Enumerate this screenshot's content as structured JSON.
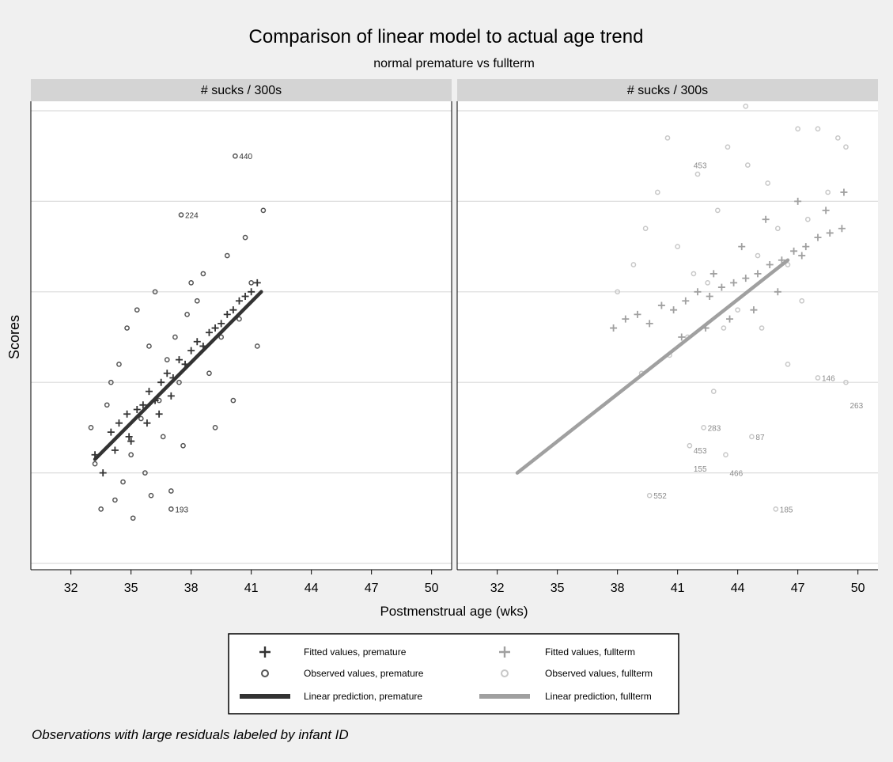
{
  "title": "Comparison of linear model to actual age trend",
  "subtitle": "normal premature vs fullterm",
  "ylabel": "Scores",
  "xlabel": "Postmenstrual age (wks)",
  "note": "Observations with large residuals labeled by infant ID",
  "colors": {
    "background": "#f0f0f0",
    "plot_bg": "#ffffff",
    "strip": "#d4d4d4",
    "grid": "#dcdcdc",
    "premature_fit": "#333333",
    "premature_obs": "#555555",
    "fullterm_fit": "#a0a0a0",
    "fullterm_obs": "#c8c8c8"
  },
  "chart_data": [
    {
      "type": "scatter",
      "panel_title": "# sucks / 300s",
      "x_ticks": [
        "32",
        "35",
        "38",
        "41",
        "44",
        "47",
        "50"
      ],
      "x_range": [
        30,
        51
      ],
      "y_range": [
        0,
        100
      ],
      "grid": true,
      "series": [
        {
          "name": "Fitted values, premature",
          "marker": "plus",
          "color": "#333333",
          "points": [
            [
              33.2,
              24
            ],
            [
              33.6,
              20
            ],
            [
              34,
              29
            ],
            [
              34.4,
              31
            ],
            [
              34.8,
              33
            ],
            [
              35,
              27
            ],
            [
              35.3,
              34
            ],
            [
              35.6,
              35
            ],
            [
              35.9,
              38
            ],
            [
              36.2,
              36
            ],
            [
              36.5,
              40
            ],
            [
              36.8,
              42
            ],
            [
              37.1,
              41
            ],
            [
              37.4,
              45
            ],
            [
              37.7,
              44
            ],
            [
              38,
              47
            ],
            [
              38.3,
              49
            ],
            [
              38.6,
              48
            ],
            [
              38.9,
              51
            ],
            [
              39.2,
              52
            ],
            [
              39.5,
              53
            ],
            [
              39.8,
              55
            ],
            [
              40.1,
              56
            ],
            [
              40.4,
              58
            ],
            [
              40.7,
              59
            ],
            [
              41,
              60
            ],
            [
              41.3,
              62
            ],
            [
              34.2,
              25
            ],
            [
              34.9,
              28
            ],
            [
              35.8,
              31
            ],
            [
              36.4,
              33
            ],
            [
              37,
              37
            ]
          ]
        },
        {
          "name": "Observed values, premature",
          "marker": "circle",
          "color": "#555555",
          "points": [
            [
              33,
              30
            ],
            [
              33.2,
              22
            ],
            [
              33.5,
              12
            ],
            [
              33.8,
              35
            ],
            [
              34,
              40
            ],
            [
              34.2,
              14
            ],
            [
              34.4,
              44
            ],
            [
              34.6,
              18
            ],
            [
              34.8,
              52
            ],
            [
              35,
              24
            ],
            [
              35.1,
              10
            ],
            [
              35.3,
              56
            ],
            [
              35.5,
              32
            ],
            [
              35.7,
              20
            ],
            [
              35.9,
              48
            ],
            [
              36,
              15
            ],
            [
              36.2,
              60
            ],
            [
              36.4,
              36
            ],
            [
              36.6,
              28
            ],
            [
              36.8,
              45
            ],
            [
              37,
              16
            ],
            [
              37.2,
              50
            ],
            [
              37.4,
              40
            ],
            [
              37.6,
              26
            ],
            [
              37.8,
              55
            ],
            [
              38,
              62
            ],
            [
              38.3,
              58
            ],
            [
              38.6,
              64
            ],
            [
              38.9,
              42
            ],
            [
              39.2,
              30
            ],
            [
              39.5,
              50
            ],
            [
              39.8,
              68
            ],
            [
              40.1,
              36
            ],
            [
              40.4,
              54
            ],
            [
              40.7,
              72
            ],
            [
              41,
              62
            ],
            [
              41.3,
              48
            ],
            [
              41.6,
              78
            ],
            [
              37.5,
              77
            ],
            [
              40.2,
              90
            ],
            [
              37,
              12
            ]
          ]
        },
        {
          "name": "Linear prediction, premature",
          "marker": "line",
          "color": "#333333",
          "line": [
            [
              33.2,
              23
            ],
            [
              41.5,
              60
            ]
          ]
        }
      ],
      "labels": [
        {
          "text": "440",
          "x": 40.2,
          "y": 90,
          "series": "premature"
        },
        {
          "text": "224",
          "x": 37.5,
          "y": 77,
          "series": "premature"
        },
        {
          "text": "193",
          "x": 37,
          "y": 12,
          "series": "premature"
        }
      ]
    },
    {
      "type": "scatter",
      "panel_title": "# sucks / 300s",
      "x_ticks": [
        "32",
        "35",
        "38",
        "41",
        "44",
        "47",
        "50"
      ],
      "x_range": [
        30,
        51
      ],
      "y_range": [
        0,
        100
      ],
      "grid": true,
      "series": [
        {
          "name": "Fitted values, fullterm",
          "marker": "plus",
          "color": "#a0a0a0",
          "points": [
            [
              37.8,
              52
            ],
            [
              38.4,
              54
            ],
            [
              39,
              55
            ],
            [
              39.6,
              53
            ],
            [
              40.2,
              57
            ],
            [
              40.8,
              56
            ],
            [
              41.4,
              58
            ],
            [
              42,
              60
            ],
            [
              42.6,
              59
            ],
            [
              43.2,
              61
            ],
            [
              43.8,
              62
            ],
            [
              44.4,
              63
            ],
            [
              45,
              64
            ],
            [
              45.6,
              66
            ],
            [
              46.2,
              67
            ],
            [
              46.8,
              69
            ],
            [
              47.4,
              70
            ],
            [
              48,
              72
            ],
            [
              48.6,
              73
            ],
            [
              49.2,
              74
            ],
            [
              41.2,
              50
            ],
            [
              42.4,
              52
            ],
            [
              43.6,
              54
            ],
            [
              44.8,
              56
            ],
            [
              46,
              60
            ],
            [
              47.2,
              68
            ],
            [
              48.4,
              78
            ],
            [
              49.3,
              82
            ],
            [
              42.8,
              64
            ],
            [
              44.2,
              70
            ],
            [
              45.4,
              76
            ],
            [
              47,
              80
            ]
          ]
        },
        {
          "name": "Observed values, fullterm",
          "marker": "circle",
          "color": "#c8c8c8",
          "points": [
            [
              38,
              60
            ],
            [
              38.8,
              66
            ],
            [
              39.4,
              74
            ],
            [
              40,
              82
            ],
            [
              40.5,
              94
            ],
            [
              41,
              70
            ],
            [
              41.5,
              50
            ],
            [
              42,
              86
            ],
            [
              42.5,
              62
            ],
            [
              43,
              78
            ],
            [
              43.5,
              92
            ],
            [
              44,
              56
            ],
            [
              44.5,
              88
            ],
            [
              45,
              68
            ],
            [
              45.5,
              84
            ],
            [
              46,
              74
            ],
            [
              46.5,
              66
            ],
            [
              47,
              96
            ],
            [
              47.5,
              76
            ],
            [
              48,
              96
            ],
            [
              48.5,
              82
            ],
            [
              49,
              94
            ],
            [
              49.4,
              92
            ],
            [
              42.3,
              30
            ],
            [
              41.6,
              26
            ],
            [
              43.4,
              24
            ],
            [
              44.7,
              28
            ],
            [
              45.9,
              12
            ],
            [
              49.4,
              40
            ],
            [
              48,
              41
            ],
            [
              39.6,
              15
            ],
            [
              44.4,
              101
            ],
            [
              43.3,
              52
            ],
            [
              40.6,
              46
            ],
            [
              46.5,
              44
            ],
            [
              47.2,
              58
            ],
            [
              41.8,
              64
            ],
            [
              45.2,
              52
            ],
            [
              42.8,
              38
            ],
            [
              39.2,
              42
            ]
          ]
        },
        {
          "name": "Linear prediction, fullterm",
          "marker": "line",
          "color": "#a0a0a0",
          "line": [
            [
              33,
              20
            ],
            [
              46.5,
              67
            ]
          ]
        }
      ],
      "labels": [
        {
          "text": "453",
          "x": 41.6,
          "y": 88,
          "series": "fullterm"
        },
        {
          "text": "146",
          "x": 48,
          "y": 41,
          "series": "fullterm"
        },
        {
          "text": "263",
          "x": 49.4,
          "y": 35,
          "series": "fullterm"
        },
        {
          "text": "283",
          "x": 42.3,
          "y": 30,
          "series": "fullterm"
        },
        {
          "text": "87",
          "x": 44.7,
          "y": 28,
          "series": "fullterm"
        },
        {
          "text": "453",
          "x": 41.6,
          "y": 25,
          "series": "fullterm"
        },
        {
          "text": "155",
          "x": 41.6,
          "y": 21,
          "series": "fullterm"
        },
        {
          "text": "466",
          "x": 43.4,
          "y": 20,
          "series": "fullterm"
        },
        {
          "text": "552",
          "x": 39.6,
          "y": 15,
          "series": "fullterm"
        },
        {
          "text": "185",
          "x": 45.9,
          "y": 12,
          "series": "fullterm"
        }
      ]
    }
  ],
  "legend": {
    "items": [
      {
        "symbol": "+",
        "label": "Fitted values, premature",
        "color": "#333333"
      },
      {
        "symbol": "+",
        "label": "Fitted values, fullterm",
        "color": "#a0a0a0"
      },
      {
        "symbol": "o",
        "label": "Observed values, premature",
        "color": "#555555"
      },
      {
        "symbol": "o",
        "label": "Observed values, fullterm",
        "color": "#c8c8c8"
      },
      {
        "symbol": "line",
        "label": "Linear prediction, premature",
        "color": "#333333"
      },
      {
        "symbol": "line",
        "label": "Linear prediction, fullterm",
        "color": "#a0a0a0"
      }
    ]
  }
}
